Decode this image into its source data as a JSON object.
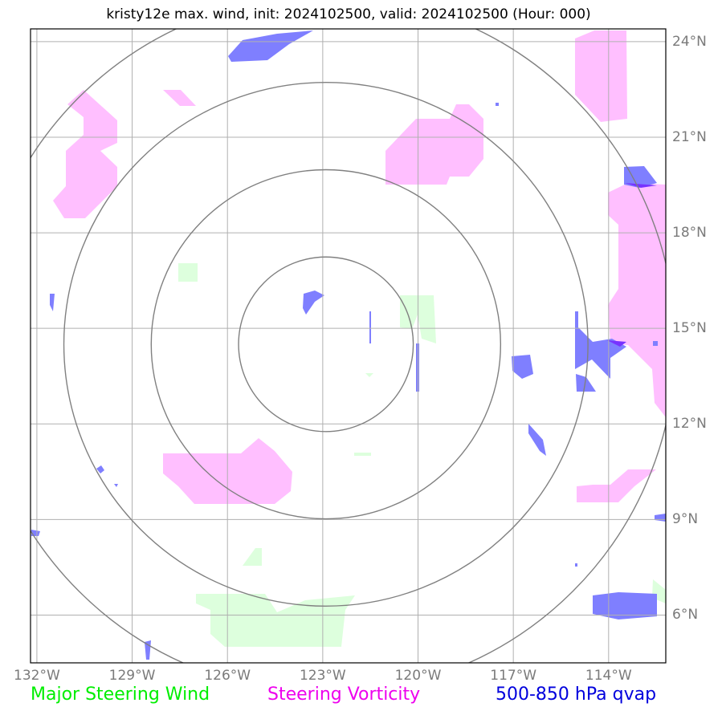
{
  "title": "kristy12e max. wind, init: 2024102500, valid: 2024102500 (Hour: 000)",
  "map": {
    "lon_labels": [
      "132°W",
      "129°W",
      "126°W",
      "123°W",
      "120°W",
      "117°W",
      "114°W"
    ],
    "lat_labels": [
      "24°N",
      "21°N",
      "18°N",
      "15°N",
      "12°N",
      "9°N",
      "6°N"
    ],
    "lon_ticks": [
      -132,
      -129,
      -126,
      -123,
      -120,
      -117,
      -114
    ],
    "lat_ticks": [
      24,
      21,
      18,
      15,
      12,
      9,
      6
    ],
    "extent": {
      "lon_min": -132.2,
      "lon_max": -112.2,
      "lat_min": 4.5,
      "lat_max": 24.4
    },
    "center": {
      "lon": -122.9,
      "lat": 14.5
    },
    "range_rings_deg": [
      2.75,
      5.5,
      8.25,
      11.0
    ],
    "colors": {
      "steering_wind": "#ddffdd",
      "steering_vorticity": "#ffbfff",
      "qvap": "#7f7fff",
      "grid": "#b0b0b0",
      "ring": "#808080"
    }
  },
  "legend": {
    "wind": {
      "label": "Major Steering Wind",
      "color": "#00ee00"
    },
    "vorticity": {
      "label": "Steering Vorticity",
      "color": "#ee00ee"
    },
    "qvap": {
      "label": "500-850 hPa qvap",
      "color": "#0000dd"
    }
  }
}
